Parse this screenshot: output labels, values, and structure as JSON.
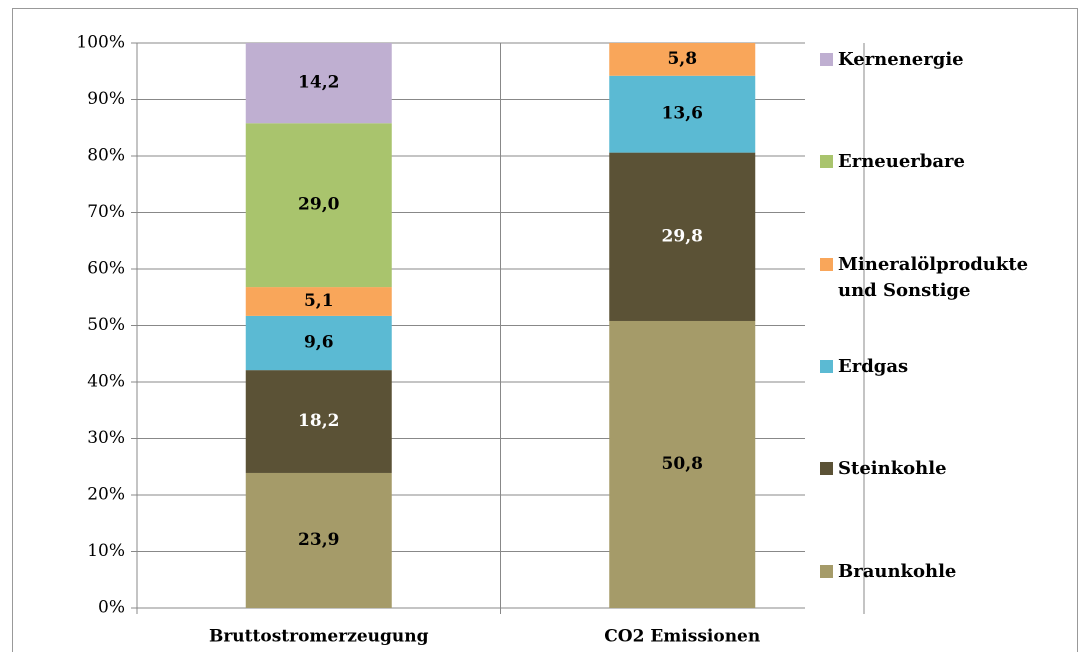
{
  "chart_data": {
    "type": "stacked_bar",
    "categories": [
      "Bruttostromerzeugung",
      "CO2 Emissionen"
    ],
    "series": [
      {
        "name": "Braunkohle",
        "color": "#a59b69",
        "values": [
          23.9,
          50.8
        ],
        "value_labels": [
          "23,9",
          "50,8"
        ]
      },
      {
        "name": "Steinkohle",
        "color": "#5b5236",
        "values": [
          18.2,
          29.8
        ],
        "value_labels": [
          "18,2",
          "29,8"
        ]
      },
      {
        "name": "Erdgas",
        "color": "#5bbad3",
        "values": [
          9.6,
          13.6
        ],
        "value_labels": [
          "9,6",
          "13,6"
        ]
      },
      {
        "name": "Mineralölprodukte und Sonstige",
        "color": "#f9a65a",
        "values": [
          5.1,
          5.8
        ],
        "value_labels": [
          "5,1",
          "5,8"
        ]
      },
      {
        "name": "Erneuerbare",
        "color": "#a9c46d",
        "values": [
          29.0,
          null
        ],
        "value_labels": [
          "29,0",
          null
        ]
      },
      {
        "name": "Kernenergie",
        "color": "#bfafd1",
        "values": [
          14.2,
          null
        ],
        "value_labels": [
          "14,2",
          null
        ]
      }
    ],
    "ylim": [
      0,
      100
    ],
    "yticks": [
      {
        "value": 0,
        "label": "0%"
      },
      {
        "value": 10,
        "label": "10%"
      },
      {
        "value": 20,
        "label": "20%"
      },
      {
        "value": 30,
        "label": "30%"
      },
      {
        "value": 40,
        "label": "40%"
      },
      {
        "value": 50,
        "label": "50%"
      },
      {
        "value": 60,
        "label": "60%"
      },
      {
        "value": 70,
        "label": "70%"
      },
      {
        "value": 80,
        "label": "80%"
      },
      {
        "value": 90,
        "label": "90%"
      },
      {
        "value": 100,
        "label": "100%"
      }
    ],
    "grid": true,
    "legend": "right"
  }
}
